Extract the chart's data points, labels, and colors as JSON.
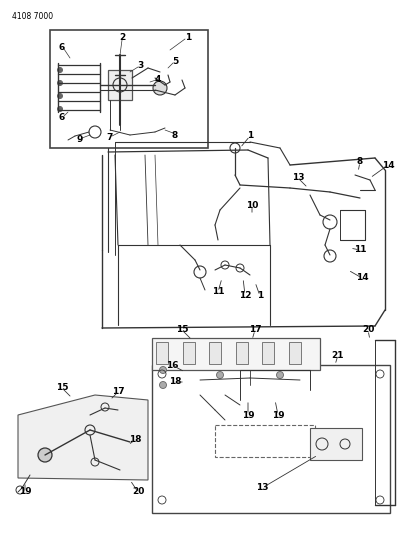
{
  "page_id": "4108 7000",
  "bg": "#ffffff",
  "fg": "#333333",
  "figsize": [
    4.08,
    5.33
  ],
  "dpi": 100
}
